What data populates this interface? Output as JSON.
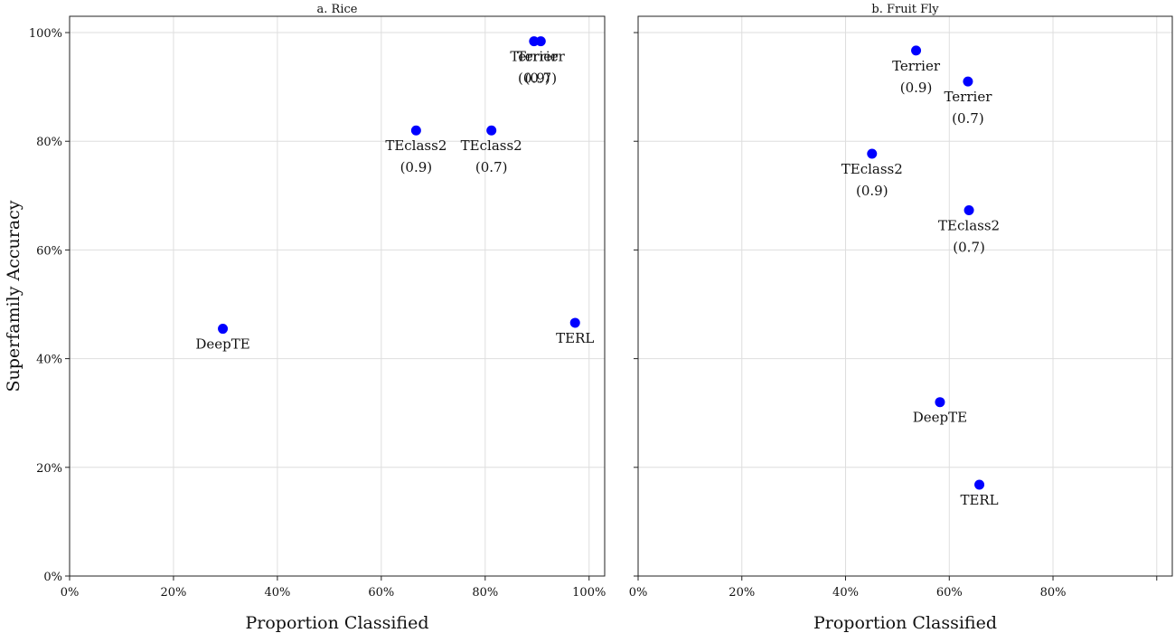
{
  "chart_data": [
    {
      "type": "scatter",
      "title": "a. Rice",
      "xlabel": "Proportion Classified",
      "ylabel": "Superfamily Accuracy",
      "xlim": [
        0,
        1.03
      ],
      "ylim": [
        0,
        1.03
      ],
      "xticks": [
        0,
        0.2,
        0.4,
        0.6,
        0.8,
        1.0
      ],
      "xtick_labels": [
        "0%",
        "20%",
        "40%",
        "60%",
        "80%",
        "100%"
      ],
      "yticks": [
        0,
        0.2,
        0.4,
        0.6,
        0.8,
        1.0
      ],
      "ytick_labels": [
        "0%",
        "20%",
        "40%",
        "60%",
        "80%",
        "100%"
      ],
      "grid": true,
      "points": [
        {
          "label": "DeepTE",
          "x": 0.295,
          "y": 0.455
        },
        {
          "label": "TEclass2",
          "sublabel": "(0.9)",
          "x": 0.667,
          "y": 0.82
        },
        {
          "label": "TEclass2",
          "sublabel": "(0.7)",
          "x": 0.812,
          "y": 0.82
        },
        {
          "label": "Terrier",
          "sublabel": "(0.9)",
          "x": 0.894,
          "y": 0.984
        },
        {
          "label": "Terrier",
          "sublabel": "(0.7)",
          "x": 0.907,
          "y": 0.984
        },
        {
          "label": "TERL",
          "x": 0.973,
          "y": 0.466
        }
      ]
    },
    {
      "type": "scatter",
      "title": "b. Fruit Fly",
      "xlabel": "Proportion Classified",
      "ylabel": "",
      "xlim": [
        0,
        1.03
      ],
      "ylim": [
        0,
        1.03
      ],
      "xticks": [
        0,
        0.2,
        0.4,
        0.6,
        0.8,
        1.0
      ],
      "xtick_labels": [
        "0%",
        "20%",
        "40%",
        "60%",
        "80%",
        ""
      ],
      "yticks": [
        0,
        0.2,
        0.4,
        0.6,
        0.8,
        1.0
      ],
      "ytick_labels": [
        "",
        "",
        "",
        "",
        "",
        ""
      ],
      "grid": true,
      "points": [
        {
          "label": "Terrier",
          "sublabel": "(0.9)",
          "x": 0.536,
          "y": 0.967
        },
        {
          "label": "Terrier",
          "sublabel": "(0.7)",
          "x": 0.636,
          "y": 0.91
        },
        {
          "label": "TEclass2",
          "sublabel": "(0.9)",
          "x": 0.451,
          "y": 0.777
        },
        {
          "label": "TEclass2",
          "sublabel": "(0.7)",
          "x": 0.638,
          "y": 0.673
        },
        {
          "label": "DeepTE",
          "x": 0.582,
          "y": 0.32
        },
        {
          "label": "TERL",
          "x": 0.658,
          "y": 0.168
        }
      ]
    }
  ]
}
